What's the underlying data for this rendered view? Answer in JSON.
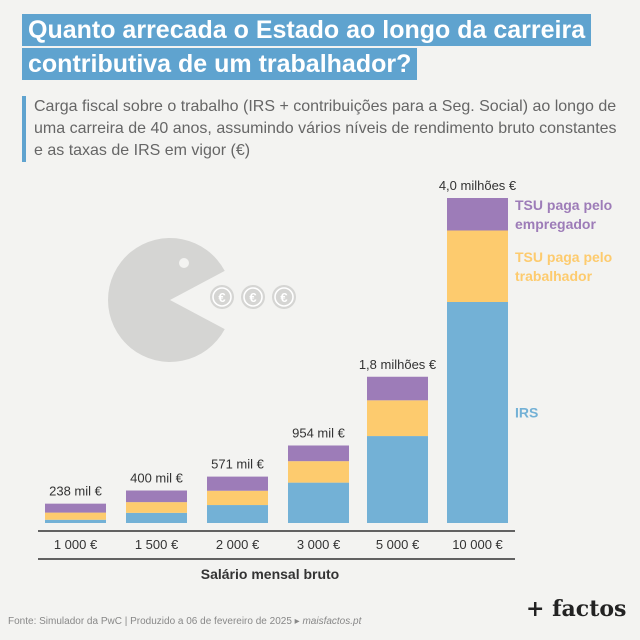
{
  "title_lines": [
    "Quanto arrecada o Estado ao longo da carreira",
    "contributiva de um trabalhador?"
  ],
  "subtitle": "Carga fiscal sobre o trabalho (IRS + contribuições para a Seg. Social) ao longo de uma carreira de 40 anos, assumindo vários níveis de rendimento bruto constantes e as taxas de IRS em vigor (€)",
  "colors": {
    "irs": "#73b1d6",
    "tsu_trabalhador": "#fdcb6e",
    "tsu_empregador": "#9d7cb8",
    "accent": "#5fa3cf",
    "pacman": "#d5d5d3"
  },
  "chart_data": {
    "type": "bar",
    "stacked": true,
    "categories": [
      "1 000 €",
      "1 500 €",
      "2 000 €",
      "3 000 €",
      "5 000 €",
      "10 000 €"
    ],
    "totals": [
      238000,
      400000,
      571000,
      954000,
      1800000,
      4000000
    ],
    "total_labels": [
      "238 mil €",
      "400 mil €",
      "571 mil €",
      "954 mil €",
      "1,8 milhões €",
      "4,0 milhões €"
    ],
    "series": [
      {
        "name": "IRS",
        "values": [
          40000,
          125000,
          221000,
          497000,
          1070000,
          2720000
        ]
      },
      {
        "name": "TSU paga pelo trabalhador",
        "values": [
          88000,
          132000,
          176000,
          264000,
          440000,
          880000
        ]
      },
      {
        "name": "TSU paga pelo empregador",
        "values": [
          110000,
          143000,
          174000,
          193000,
          290000,
          400000
        ]
      }
    ],
    "series_labels": [
      [
        "IRS"
      ],
      [
        "TSU paga pelo",
        "trabalhador"
      ],
      [
        "TSU paga pelo",
        "empregador"
      ]
    ],
    "xlabel": "Salário mensal bruto",
    "ylim": [
      0,
      4000000
    ]
  },
  "footer": {
    "text": "Fonte: Simulador da PwC | Produzido a 06 de fevereiro de 2025 ▸ ",
    "site": "maisfactos.pt"
  },
  "logo": "+ factos",
  "decoration": {
    "icon": "pacman-eating-euro-coins-icon",
    "coin_symbol": "€"
  }
}
